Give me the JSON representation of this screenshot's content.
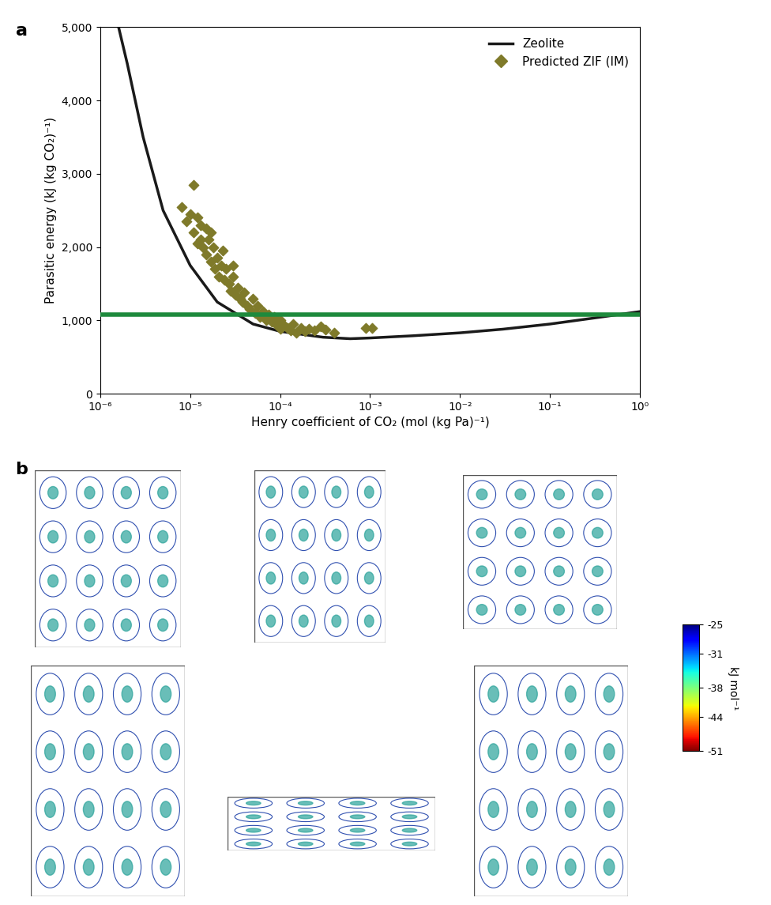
{
  "chart_data": [
    {
      "type": "scatter",
      "panel": "a",
      "x_label": "Henry coefficient of CO₂ (mol (kg Pa)⁻¹)",
      "y_label": "Parasitic energy (kJ (kg CO₂)⁻¹)",
      "log": "x",
      "xlim": [
        1e-06,
        1
      ],
      "xticks": [
        {
          "value": 1e-06,
          "label": "10⁻⁶"
        },
        {
          "value": 1e-05,
          "label": "10⁻⁵"
        },
        {
          "value": 0.0001,
          "label": "10⁻⁴"
        },
        {
          "value": 0.001,
          "label": "10⁻³"
        },
        {
          "value": 0.01,
          "label": "10⁻²"
        },
        {
          "value": 0.1,
          "label": "10⁻¹"
        },
        {
          "value": 1,
          "label": "10⁰"
        }
      ],
      "ylim": [
        0,
        5000
      ],
      "yticks": [
        {
          "value": 0,
          "label": "0"
        },
        {
          "value": 1000,
          "label": "1,000"
        },
        {
          "value": 2000,
          "label": "2,000"
        },
        {
          "value": 3000,
          "label": "3,000"
        },
        {
          "value": 4000,
          "label": "4,000"
        },
        {
          "value": 5000,
          "label": "5,000"
        }
      ],
      "legend": "upper right",
      "series": [
        {
          "name": "Zeolite",
          "type": "line",
          "color": "#1a1a1a",
          "line_style": "solid",
          "x": [
            1.6e-06,
            2e-06,
            3e-06,
            5e-06,
            1e-05,
            2e-05,
            5e-05,
            0.0001,
            0.0003,
            0.0006,
            0.001,
            0.003,
            0.01,
            0.03,
            0.1,
            0.3,
            1
          ],
          "values": [
            5000,
            4500,
            3500,
            2500,
            1750,
            1250,
            950,
            850,
            770,
            750,
            760,
            790,
            830,
            880,
            950,
            1030,
            1120
          ]
        },
        {
          "name": "Predicted ZIF (IM)",
          "type": "scatter",
          "marker": "diamond",
          "color": "#7f7a2a",
          "x": [
            8e-06,
            9e-06,
            1e-05,
            1.1e-05,
            1.1e-05,
            1.2e-05,
            1.3e-05,
            1.3e-05,
            1.4e-05,
            1.5e-05,
            1.5e-05,
            1.6e-05,
            1.7e-05,
            1.8e-05,
            1.9e-05,
            2e-05,
            2.1e-05,
            2.2e-05,
            2.4e-05,
            2.5e-05,
            2.7e-05,
            2.8e-05,
            3e-05,
            3.2e-05,
            3.4e-05,
            3.6e-05,
            3.8e-05,
            4e-05,
            4.3e-05,
            4.6e-05,
            5e-05,
            5.3e-05,
            5.6e-05,
            6e-05,
            6.5e-05,
            7e-05,
            7.5e-05,
            8e-05,
            8.5e-05,
            9e-05,
            0.0001,
            0.0001,
            0.00011,
            0.00012,
            0.00013,
            0.00014,
            0.00015,
            0.00017,
            0.00019,
            0.00021,
            0.00024,
            0.00028,
            0.00032,
            0.0004,
            0.0009,
            0.00105,
            1.7e-05,
            2.3e-05,
            3e-05,
            1.2e-05
          ],
          "values": [
            2550,
            2350,
            2450,
            2850,
            2200,
            2400,
            2300,
            2100,
            2000,
            2250,
            1900,
            2100,
            1800,
            2000,
            1700,
            1850,
            1600,
            1750,
            1550,
            1700,
            1500,
            1400,
            1600,
            1350,
            1450,
            1300,
            1250,
            1380,
            1200,
            1150,
            1300,
            1100,
            1200,
            1050,
            1120,
            1000,
            1080,
            980,
            1050,
            950,
            1000,
            880,
            940,
            900,
            860,
            950,
            830,
            900,
            850,
            880,
            860,
            920,
            870,
            830,
            900,
            900,
            2200,
            1950,
            1750,
            2050
          ]
        },
        {
          "type": "line",
          "color": "#1e8a3c",
          "line_style": "solid",
          "x": [
            1e-06,
            1
          ],
          "values": [
            1080,
            1080
          ]
        }
      ]
    },
    {
      "type": "structure_images",
      "panel": "b",
      "colorbar": {
        "label": "kJ mol⁻¹",
        "range": [
          -51,
          -25
        ],
        "ticks": [
          -25,
          -31,
          -38,
          -44,
          -51
        ]
      }
    }
  ]
}
